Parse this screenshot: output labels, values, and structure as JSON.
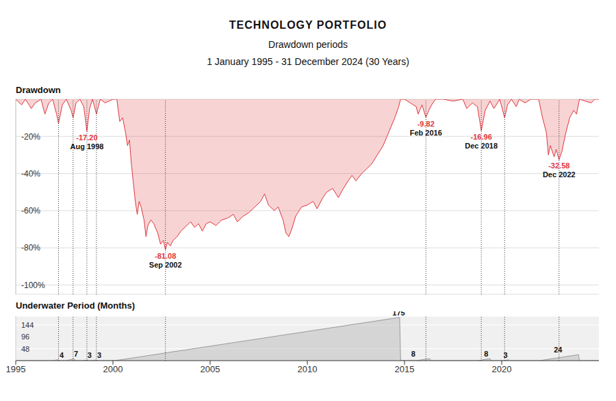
{
  "chart_data": [
    {
      "type": "area",
      "title": "TECHNOLOGY PORTFOLIO",
      "subtitle": [
        "Drawdown periods",
        "1 January 1995 - 31 December 2024 (30 Years)"
      ],
      "y_label": "Drawdown",
      "color": "#e0363c",
      "grid": true,
      "x": [
        1995.0,
        1995.3,
        1995.5,
        1995.8,
        1996.0,
        1996.3,
        1996.5,
        1996.7,
        1996.9,
        1997.1,
        1997.2,
        1997.4,
        1997.6,
        1997.85,
        1997.95,
        1998.1,
        1998.3,
        1998.5,
        1998.66,
        1998.8,
        1998.95,
        1999.1,
        1999.15,
        1999.35,
        1999.6,
        2000.0,
        2000.2,
        2000.35,
        2000.5,
        2000.65,
        2000.75,
        2000.85,
        2000.95,
        2001.05,
        2001.15,
        2001.25,
        2001.35,
        2001.45,
        2001.6,
        2001.7,
        2001.8,
        2001.95,
        2002.1,
        2002.3,
        2002.45,
        2002.6,
        2002.7,
        2002.8,
        2002.95,
        2003.1,
        2003.3,
        2003.5,
        2003.8,
        2004.0,
        2004.2,
        2004.4,
        2004.6,
        2004.8,
        2005.0,
        2005.3,
        2005.6,
        2005.9,
        2006.2,
        2006.4,
        2006.7,
        2007.0,
        2007.3,
        2007.6,
        2007.8,
        2008.0,
        2008.3,
        2008.5,
        2008.75,
        2008.9,
        2009.05,
        2009.2,
        2009.4,
        2009.7,
        2010.0,
        2010.3,
        2010.5,
        2010.8,
        2011.0,
        2011.3,
        2011.6,
        2011.8,
        2012.1,
        2012.3,
        2012.5,
        2012.8,
        2013.0,
        2013.3,
        2013.6,
        2013.9,
        2014.1,
        2014.3,
        2014.5,
        2014.7,
        2014.8,
        2015.0,
        2015.3,
        2015.6,
        2015.7,
        2015.9,
        2016.1,
        2016.25,
        2016.4,
        2016.6,
        2017.0,
        2017.5,
        2018.0,
        2018.2,
        2018.5,
        2018.75,
        2018.95,
        2019.15,
        2019.4,
        2019.6,
        2019.9,
        2020.15,
        2020.3,
        2020.5,
        2020.75,
        2020.9,
        2021.2,
        2021.5,
        2021.9,
        2022.1,
        2022.3,
        2022.4,
        2022.5,
        2022.7,
        2022.8,
        2022.95,
        2023.1,
        2023.3,
        2023.5,
        2023.7,
        2023.85,
        2024.0,
        2024.3,
        2024.6,
        2024.8,
        2025.0
      ],
      "values": [
        0,
        -3,
        0,
        -5,
        -2,
        0,
        -8,
        -2,
        0,
        -8,
        -13,
        -3,
        0,
        -6,
        -10,
        -2,
        0,
        -4,
        -17.2,
        -5,
        0,
        -6,
        -8,
        0,
        -2,
        0,
        0,
        -12,
        -10,
        -18,
        -25,
        -22,
        -35,
        -45,
        -55,
        -62,
        -55,
        -58,
        -65,
        -74,
        -68,
        -65,
        -67,
        -72,
        -78,
        -76,
        -81.08,
        -77,
        -79,
        -76,
        -74,
        -71,
        -68,
        -66,
        -69,
        -67,
        -71,
        -67,
        -66,
        -68,
        -65,
        -64,
        -62,
        -66,
        -63,
        -61,
        -58,
        -55,
        -51,
        -57,
        -60,
        -58,
        -65,
        -72,
        -74,
        -70,
        -63,
        -58,
        -57,
        -55,
        -59,
        -53,
        -50,
        -48,
        -53,
        -49,
        -44,
        -41,
        -44,
        -40,
        -38,
        -35,
        -30,
        -25,
        -20,
        -15,
        -10,
        -4,
        0,
        0,
        -2,
        -4,
        -8,
        -3,
        -9.82,
        -6,
        -3,
        0,
        0,
        -1,
        0,
        -5,
        -2,
        -4,
        -16.96,
        -6,
        -1,
        -5,
        0,
        -10,
        -3,
        0,
        -4,
        0,
        -2,
        0,
        0,
        -10,
        -18,
        -30,
        -25,
        -31,
        -27,
        -32.58,
        -28,
        -18,
        -10,
        -6,
        -8,
        0,
        -1,
        -2,
        0,
        0
      ],
      "xlim": [
        1995,
        2025
      ],
      "xticks": [
        1995,
        2000,
        2005,
        2010,
        2015,
        2020
      ],
      "ylim": [
        -105,
        0
      ],
      "yticks": [
        {
          "value": -20,
          "label": "-20%"
        },
        {
          "value": -40,
          "label": "-40%"
        },
        {
          "value": -60,
          "label": "-60%"
        },
        {
          "value": -80,
          "label": "-80%"
        },
        {
          "value": -100,
          "label": "-100%"
        }
      ],
      "annotations": [
        {
          "x": 1998.66,
          "value": -17.2,
          "value_label": "-17.20",
          "date": "Aug 1998"
        },
        {
          "x": 2002.7,
          "value": -81.08,
          "value_label": "-81.08",
          "date": "Sep 2002"
        },
        {
          "x": 2016.1,
          "value": -9.82,
          "value_label": "-9.82",
          "date": "Feb 2016"
        },
        {
          "x": 2018.95,
          "value": -16.96,
          "value_label": "-16.96",
          "date": "Dec 2018"
        },
        {
          "x": 2022.95,
          "value": -32.58,
          "value_label": "-32.58",
          "date": "Dec 2022"
        }
      ],
      "vlines": [
        1997.2,
        1997.95,
        1998.66,
        1999.15,
        2002.7,
        2016.1,
        2018.95,
        2020.15,
        2022.95
      ]
    },
    {
      "type": "area",
      "title": "Underwater Period (Months)",
      "color": "#999999",
      "grid": true,
      "x": [
        1995,
        1996.9,
        1997.2,
        1997.25,
        1997.6,
        1998.0,
        1998.05,
        1998.45,
        1998.7,
        1998.75,
        1998.9,
        1999.15,
        1999.2,
        2000.1,
        2014.75,
        2014.8,
        2015.6,
        2016.3,
        2016.35,
        2018.75,
        2019.4,
        2019.45,
        2020.1,
        2020.35,
        2020.4,
        2021.95,
        2023.95,
        2024.0,
        2025
      ],
      "values": [
        0,
        0,
        4,
        0,
        0,
        7,
        0,
        0,
        3,
        0,
        0,
        3,
        0,
        0,
        175,
        0,
        0,
        8,
        0,
        0,
        8,
        0,
        0,
        3,
        0,
        0,
        24,
        0,
        0
      ],
      "xlim": [
        1995,
        2025
      ],
      "xticks": [
        1995,
        2000,
        2005,
        2010,
        2015,
        2020
      ],
      "ylim": [
        0,
        180
      ],
      "yticks": [
        48,
        96,
        144
      ],
      "peak_labels": [
        {
          "x": 1997.36,
          "value": 4
        },
        {
          "x": 1998.1,
          "value": 7
        },
        {
          "x": 1998.8,
          "value": 3
        },
        {
          "x": 1999.3,
          "value": 3
        },
        {
          "x": 2014.7,
          "value": 175
        },
        {
          "x": 2015.45,
          "value": 8
        },
        {
          "x": 2019.2,
          "value": 8
        },
        {
          "x": 2020.2,
          "value": 3
        },
        {
          "x": 2022.9,
          "value": 24
        }
      ]
    }
  ]
}
